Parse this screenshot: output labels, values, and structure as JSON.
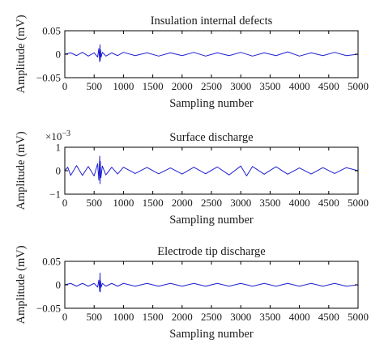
{
  "chart_data": [
    {
      "type": "line",
      "title": "Insulation internal defects",
      "xlabel": "Sampling number",
      "ylabel": "Amplitude (mV)",
      "xlim": [
        0,
        5000
      ],
      "ylim": [
        -0.05,
        0.05
      ],
      "xticks": [
        0,
        500,
        1000,
        1500,
        2000,
        2500,
        3000,
        3500,
        4000,
        4500,
        5000
      ],
      "yticks": [
        0.05,
        0,
        -0.05
      ],
      "ytick_labels": [
        "0.05",
        "0",
        "−0.05"
      ],
      "grid": false,
      "series": [
        {
          "color": "#1f1fd1",
          "x": [
            0,
            100,
            200,
            300,
            400,
            500,
            560,
            580,
            595,
            600,
            605,
            610,
            620,
            640,
            700,
            800,
            900,
            1000,
            1200,
            1400,
            1600,
            1800,
            2000,
            2200,
            2400,
            2600,
            2800,
            3000,
            3200,
            3400,
            3600,
            3800,
            4000,
            4200,
            4400,
            4600,
            4800,
            5000
          ],
          "y": [
            0.0,
            0.003,
            -0.003,
            0.004,
            -0.004,
            0.003,
            -0.006,
            0.012,
            -0.016,
            0.02,
            -0.013,
            0.009,
            -0.006,
            0.004,
            -0.004,
            0.003,
            -0.003,
            0.004,
            -0.003,
            0.003,
            -0.004,
            0.003,
            -0.003,
            0.004,
            -0.004,
            0.003,
            -0.003,
            0.004,
            -0.004,
            0.003,
            -0.003,
            0.005,
            -0.004,
            0.003,
            -0.003,
            0.004,
            -0.003,
            0.0
          ]
        }
      ]
    },
    {
      "type": "line",
      "title": "Surface discharge",
      "xlabel": "Sampling number",
      "ylabel": "Amplitude (mV)",
      "xlim": [
        0,
        5000
      ],
      "ylim": [
        -1,
        1
      ],
      "multiplier": "×10",
      "multiplier_exponent": "−3",
      "xticks": [
        0,
        500,
        1000,
        1500,
        2000,
        2500,
        3000,
        3500,
        4000,
        4500,
        5000
      ],
      "yticks": [
        1,
        0,
        -1
      ],
      "ytick_labels": [
        "1",
        "0",
        "−1"
      ],
      "grid": false,
      "series": [
        {
          "color": "#1f1fd1",
          "x": [
            0,
            50,
            100,
            200,
            300,
            400,
            500,
            560,
            580,
            595,
            600,
            605,
            615,
            640,
            700,
            800,
            900,
            1000,
            1200,
            1400,
            1600,
            1800,
            2000,
            2200,
            2400,
            2600,
            2800,
            3000,
            3100,
            3200,
            3400,
            3600,
            3800,
            4000,
            4200,
            4400,
            4600,
            4800,
            5000
          ],
          "y": [
            0.0,
            0.15,
            -0.2,
            0.22,
            -0.2,
            0.18,
            -0.22,
            0.3,
            -0.4,
            0.62,
            -0.55,
            0.4,
            -0.3,
            0.2,
            -0.18,
            0.15,
            -0.14,
            0.15,
            -0.12,
            0.14,
            -0.13,
            0.12,
            -0.14,
            0.15,
            -0.13,
            0.16,
            -0.18,
            0.2,
            -0.22,
            0.18,
            -0.15,
            0.17,
            -0.15,
            0.12,
            -0.14,
            0.13,
            -0.12,
            0.13,
            0.0
          ]
        }
      ]
    },
    {
      "type": "line",
      "title": "Electrode tip discharge",
      "xlabel": "Sampling number",
      "ylabel": "Amplitude (mV)",
      "xlim": [
        0,
        5000
      ],
      "ylim": [
        -0.05,
        0.05
      ],
      "xticks": [
        0,
        500,
        1000,
        1500,
        2000,
        2500,
        3000,
        3500,
        4000,
        4500,
        5000
      ],
      "yticks": [
        0.05,
        0,
        -0.05
      ],
      "ytick_labels": [
        "0.05",
        "0",
        "−0.05"
      ],
      "grid": false,
      "series": [
        {
          "color": "#1f1fd1",
          "x": [
            0,
            100,
            200,
            300,
            400,
            500,
            560,
            580,
            595,
            600,
            605,
            610,
            620,
            640,
            700,
            800,
            900,
            1000,
            1200,
            1400,
            1600,
            1800,
            2000,
            2200,
            2400,
            2600,
            2800,
            3000,
            3200,
            3400,
            3600,
            3800,
            4000,
            4200,
            4400,
            4600,
            4800,
            5000
          ],
          "y": [
            0.0,
            0.003,
            -0.003,
            0.003,
            -0.003,
            0.003,
            -0.005,
            0.01,
            -0.014,
            0.025,
            -0.015,
            0.008,
            -0.005,
            0.003,
            -0.003,
            0.003,
            -0.003,
            0.003,
            -0.003,
            0.003,
            -0.003,
            0.003,
            -0.003,
            0.003,
            -0.003,
            0.003,
            -0.003,
            0.003,
            -0.003,
            0.003,
            -0.003,
            0.003,
            -0.003,
            0.003,
            -0.003,
            0.003,
            -0.003,
            0.0
          ]
        }
      ]
    }
  ]
}
